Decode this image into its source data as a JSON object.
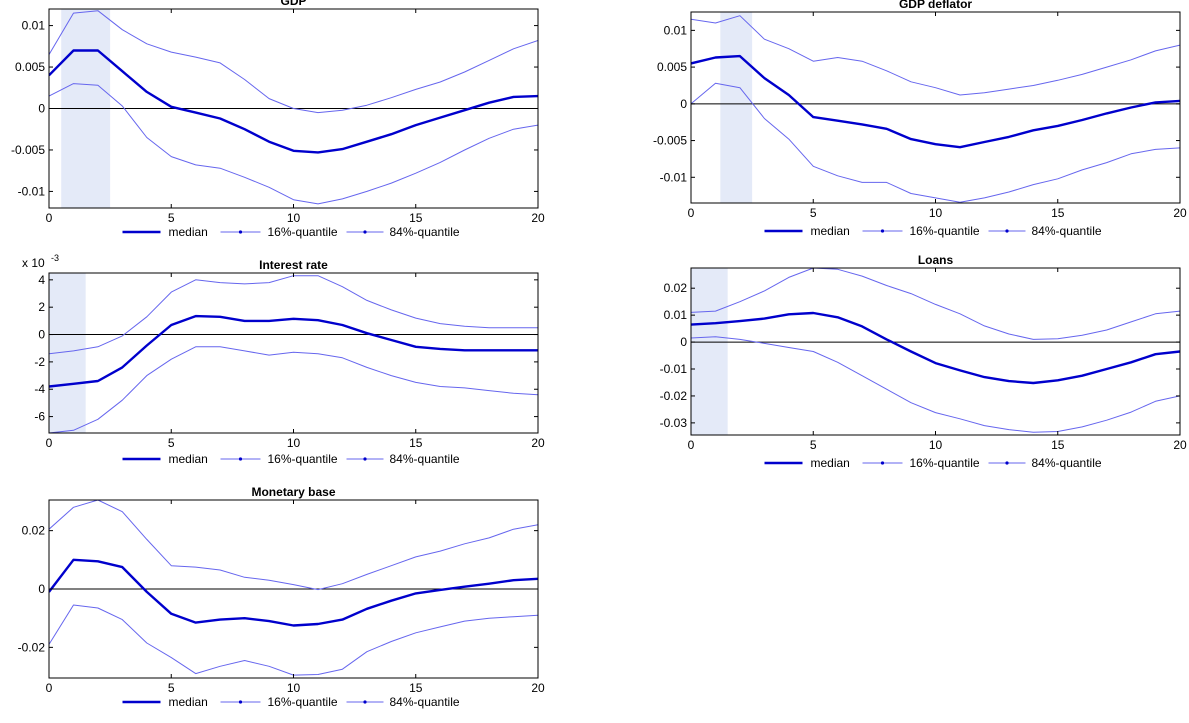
{
  "colors": {
    "median": "#0000cc",
    "quantile": "#6666ee",
    "shade": "#e4eaf8",
    "axis": "#000000"
  },
  "legend_labels": {
    "median": "median",
    "q16": "16%-quantile",
    "q84": "84%-quantile"
  },
  "chart_data": [
    {
      "type": "line",
      "title": "GDP",
      "xlim": [
        0,
        20
      ],
      "ylim": [
        -0.012,
        0.012
      ],
      "xticks": [
        0,
        5,
        10,
        15,
        20
      ],
      "yticks": [
        -0.01,
        -0.005,
        0,
        0.005,
        0.01
      ],
      "ytick_labels": [
        "-0.01",
        "-0.005",
        "0",
        "0.005",
        "0.01"
      ],
      "scale_label": "",
      "highlight": [
        0.5,
        2.5
      ],
      "x": [
        0,
        1,
        2,
        3,
        4,
        5,
        6,
        7,
        8,
        9,
        10,
        11,
        12,
        13,
        14,
        15,
        16,
        17,
        18,
        19,
        20
      ],
      "series": [
        {
          "name": "median",
          "values": [
            0.004,
            0.007,
            0.007,
            0.0045,
            0.002,
            0.0002,
            -0.0005,
            -0.0012,
            -0.0025,
            -0.004,
            -0.0051,
            -0.0053,
            -0.0049,
            -0.004,
            -0.0031,
            -0.002,
            -0.0011,
            -0.0002,
            0.0007,
            0.0014,
            0.0015
          ]
        },
        {
          "name": "16%-quantile",
          "values": [
            0.0015,
            0.003,
            0.0028,
            0.0003,
            -0.0035,
            -0.0058,
            -0.0068,
            -0.0072,
            -0.0083,
            -0.0095,
            -0.011,
            -0.0115,
            -0.0109,
            -0.01,
            -0.009,
            -0.0078,
            -0.0065,
            -0.005,
            -0.0036,
            -0.0025,
            -0.002
          ]
        },
        {
          "name": "84%-quantile",
          "values": [
            0.0065,
            0.0115,
            0.0118,
            0.0095,
            0.0078,
            0.0068,
            0.0062,
            0.0055,
            0.0035,
            0.0012,
            0.0,
            -0.0005,
            -0.0002,
            0.0004,
            0.0013,
            0.0023,
            0.0032,
            0.0044,
            0.0058,
            0.0072,
            0.0082
          ]
        }
      ]
    },
    {
      "type": "line",
      "title": "GDP deflator",
      "xlim": [
        0,
        20
      ],
      "ylim": [
        -0.0135,
        0.0125
      ],
      "xticks": [
        0,
        5,
        10,
        15,
        20
      ],
      "yticks": [
        -0.01,
        -0.005,
        0,
        0.005,
        0.01
      ],
      "ytick_labels": [
        "-0.01",
        "-0.005",
        "0",
        "0.005",
        "0.01"
      ],
      "scale_label": "",
      "highlight": [
        1.2,
        2.5
      ],
      "x": [
        0,
        1,
        2,
        3,
        4,
        5,
        6,
        7,
        8,
        9,
        10,
        11,
        12,
        13,
        14,
        15,
        16,
        17,
        18,
        19,
        20
      ],
      "series": [
        {
          "name": "median",
          "values": [
            0.0055,
            0.0063,
            0.0065,
            0.0035,
            0.0012,
            -0.0018,
            -0.0023,
            -0.0028,
            -0.0034,
            -0.0048,
            -0.0055,
            -0.0059,
            -0.0052,
            -0.0045,
            -0.0036,
            -0.003,
            -0.0022,
            -0.0013,
            -0.0005,
            0.0002,
            0.0004
          ]
        },
        {
          "name": "16%-quantile",
          "values": [
            0.0,
            0.0028,
            0.0022,
            -0.002,
            -0.0048,
            -0.0085,
            -0.0098,
            -0.0107,
            -0.0107,
            -0.0122,
            -0.0128,
            -0.0134,
            -0.0128,
            -0.012,
            -0.011,
            -0.0102,
            -0.009,
            -0.008,
            -0.0068,
            -0.0062,
            -0.006
          ]
        },
        {
          "name": "84%-quantile",
          "values": [
            0.0115,
            0.011,
            0.012,
            0.0088,
            0.0075,
            0.0058,
            0.0063,
            0.0058,
            0.0045,
            0.003,
            0.0022,
            0.0012,
            0.0015,
            0.002,
            0.0025,
            0.0032,
            0.004,
            0.005,
            0.006,
            0.0072,
            0.008
          ]
        }
      ]
    },
    {
      "type": "line",
      "title": "Interest rate",
      "xlim": [
        0,
        20
      ],
      "ylim": [
        -7.2,
        4.5
      ],
      "xticks": [
        0,
        5,
        10,
        15,
        20
      ],
      "yticks": [
        -6,
        -4,
        -2,
        0,
        2,
        4
      ],
      "ytick_labels": [
        "-6",
        "-4",
        "-2",
        "0",
        "2",
        "4"
      ],
      "scale_label": "x 10",
      "scale_exponent": "-3",
      "highlight": [
        0,
        1.5
      ],
      "x": [
        0,
        1,
        2,
        3,
        4,
        5,
        6,
        7,
        8,
        9,
        10,
        11,
        12,
        13,
        14,
        15,
        16,
        17,
        18,
        19,
        20
      ],
      "series": [
        {
          "name": "median",
          "values": [
            -3.8,
            -3.6,
            -3.4,
            -2.4,
            -0.8,
            0.7,
            1.35,
            1.3,
            1.0,
            1.0,
            1.15,
            1.05,
            0.7,
            0.1,
            -0.4,
            -0.9,
            -1.05,
            -1.15,
            -1.15,
            -1.15,
            -1.15
          ]
        },
        {
          "name": "16%-quantile",
          "values": [
            -7.2,
            -7.0,
            -6.2,
            -4.8,
            -3.0,
            -1.8,
            -0.9,
            -0.9,
            -1.2,
            -1.5,
            -1.3,
            -1.4,
            -1.7,
            -2.4,
            -3.0,
            -3.5,
            -3.8,
            -3.9,
            -4.1,
            -4.3,
            -4.4
          ]
        },
        {
          "name": "84%-quantile",
          "values": [
            -1.4,
            -1.2,
            -0.9,
            -0.1,
            1.3,
            3.1,
            4.0,
            3.8,
            3.7,
            3.8,
            4.3,
            4.3,
            3.5,
            2.5,
            1.8,
            1.2,
            0.8,
            0.6,
            0.5,
            0.5,
            0.5
          ]
        }
      ]
    },
    {
      "type": "line",
      "title": "Loans",
      "xlim": [
        0,
        20
      ],
      "ylim": [
        -0.0345,
        0.0275
      ],
      "xticks": [
        0,
        5,
        10,
        15,
        20
      ],
      "yticks": [
        -0.03,
        -0.02,
        -0.01,
        0,
        0.01,
        0.02
      ],
      "ytick_labels": [
        "-0.03",
        "-0.02",
        "-0.01",
        "0",
        "0.01",
        "0.02"
      ],
      "scale_label": "",
      "highlight": [
        0,
        1.5
      ],
      "x": [
        0,
        1,
        2,
        3,
        4,
        5,
        6,
        7,
        8,
        9,
        10,
        11,
        12,
        13,
        14,
        15,
        16,
        17,
        18,
        19,
        20
      ],
      "series": [
        {
          "name": "median",
          "values": [
            0.0065,
            0.007,
            0.0078,
            0.0087,
            0.0103,
            0.0108,
            0.0092,
            0.0058,
            0.001,
            -0.0035,
            -0.0078,
            -0.0105,
            -0.013,
            -0.0145,
            -0.0152,
            -0.0142,
            -0.0125,
            -0.01,
            -0.0075,
            -0.0045,
            -0.0035
          ]
        },
        {
          "name": "16%-quantile",
          "values": [
            0.0015,
            0.002,
            0.001,
            -0.0005,
            -0.002,
            -0.0035,
            -0.0075,
            -0.0125,
            -0.0175,
            -0.0225,
            -0.0262,
            -0.0285,
            -0.031,
            -0.0325,
            -0.0335,
            -0.0332,
            -0.0315,
            -0.029,
            -0.026,
            -0.022,
            -0.02
          ]
        },
        {
          "name": "84%-quantile",
          "values": [
            0.011,
            0.0115,
            0.015,
            0.019,
            0.024,
            0.0275,
            0.027,
            0.0245,
            0.021,
            0.018,
            0.014,
            0.0105,
            0.006,
            0.003,
            0.001,
            0.0012,
            0.0025,
            0.0045,
            0.0075,
            0.0105,
            0.0115
          ]
        }
      ]
    },
    {
      "type": "line",
      "title": "Monetary base",
      "xlim": [
        0,
        20
      ],
      "ylim": [
        -0.0305,
        0.0305
      ],
      "xticks": [
        0,
        5,
        10,
        15,
        20
      ],
      "yticks": [
        -0.02,
        0,
        0.02
      ],
      "ytick_labels": [
        "-0.02",
        "0",
        "0.02"
      ],
      "scale_label": "",
      "highlight": null,
      "x": [
        0,
        1,
        2,
        3,
        4,
        5,
        6,
        7,
        8,
        9,
        10,
        11,
        12,
        13,
        14,
        15,
        16,
        17,
        18,
        19,
        20
      ],
      "series": [
        {
          "name": "median",
          "values": [
            -0.001,
            0.01,
            0.0095,
            0.0075,
            -0.001,
            -0.0085,
            -0.0115,
            -0.0105,
            -0.01,
            -0.011,
            -0.0125,
            -0.012,
            -0.0105,
            -0.0068,
            -0.004,
            -0.0015,
            -0.0003,
            0.0008,
            0.0018,
            0.003,
            0.0035
          ]
        },
        {
          "name": "16%-quantile",
          "values": [
            -0.019,
            -0.0055,
            -0.0065,
            -0.0105,
            -0.0185,
            -0.0235,
            -0.029,
            -0.0265,
            -0.0245,
            -0.0265,
            -0.0295,
            -0.0293,
            -0.0275,
            -0.0215,
            -0.018,
            -0.015,
            -0.013,
            -0.011,
            -0.01,
            -0.0095,
            -0.009
          ]
        },
        {
          "name": "84%-quantile",
          "values": [
            0.0205,
            0.028,
            0.0305,
            0.0265,
            0.017,
            0.008,
            0.0075,
            0.0065,
            0.004,
            0.003,
            0.0015,
            -0.0002,
            0.0018,
            0.005,
            0.008,
            0.011,
            0.013,
            0.0155,
            0.0175,
            0.0205,
            0.022
          ]
        }
      ]
    }
  ]
}
